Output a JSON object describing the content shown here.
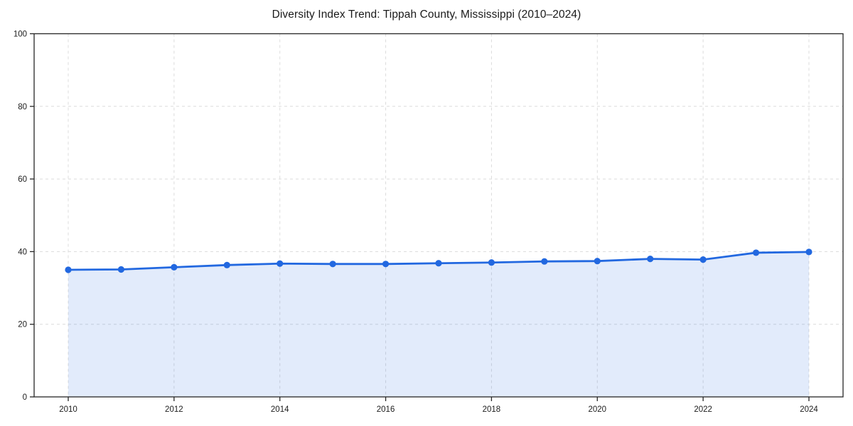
{
  "title": "Diversity Index Trend: Tippah County, Mississippi (2010–2024)",
  "chart_data": {
    "type": "area",
    "title": "Diversity Index Trend: Tippah County, Mississippi (2010–2024)",
    "x": [
      2010,
      2011,
      2012,
      2013,
      2014,
      2015,
      2016,
      2017,
      2018,
      2019,
      2020,
      2021,
      2022,
      2023,
      2024
    ],
    "series": [
      {
        "name": "Diversity Index",
        "values": [
          35.0,
          35.1,
          35.7,
          36.3,
          36.7,
          36.6,
          36.6,
          36.8,
          37.0,
          37.3,
          37.4,
          38.0,
          37.8,
          39.7,
          39.9
        ]
      }
    ],
    "xlabel": "",
    "ylabel": "",
    "xticks": [
      2010,
      2012,
      2014,
      2016,
      2018,
      2020,
      2022,
      2024
    ],
    "yticks": [
      0,
      20,
      40,
      60,
      80,
      100
    ],
    "ylim": [
      0,
      100
    ],
    "grid": true,
    "grid_style": "dashed",
    "legend": false,
    "marker": "circle",
    "colors": {
      "line": "#2268e0",
      "marker": "#2268e0",
      "area_fill": "#2268e0",
      "area_opacity": 0.13,
      "grid": "#dcdcdc",
      "spine": "#262626",
      "tick_label": "#1c1c1c",
      "background": "#ffffff"
    }
  }
}
